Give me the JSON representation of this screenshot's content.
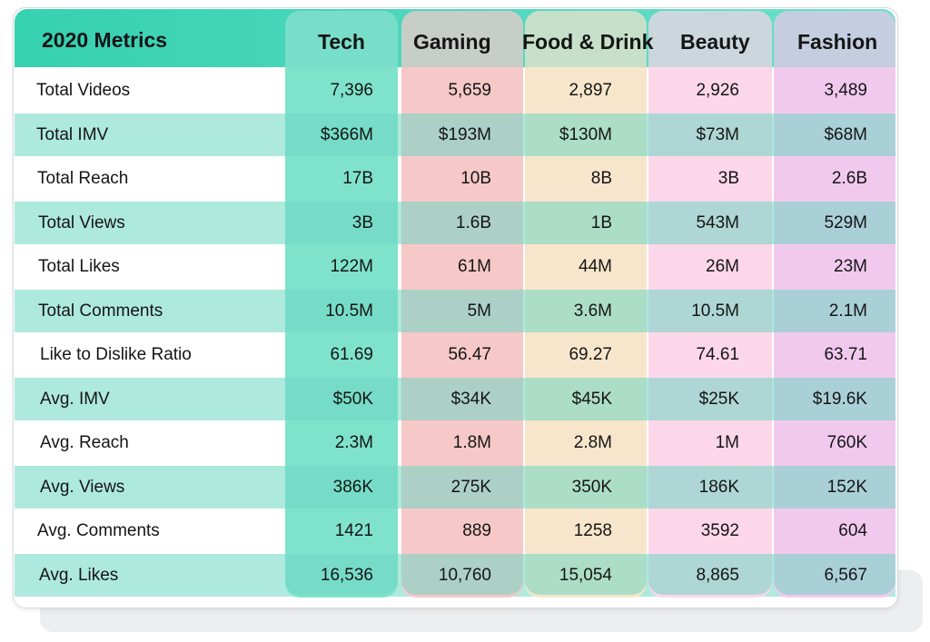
{
  "chart_data": {
    "type": "table",
    "title": "2020 Metrics",
    "columns": [
      "Tech",
      "Gaming",
      "Food & Drink",
      "Beauty",
      "Fashion"
    ],
    "rows": [
      {
        "label": "Total Videos",
        "values": [
          "7,396",
          "5,659",
          "2,897",
          "2,926",
          "3,489"
        ]
      },
      {
        "label": "Total IMV",
        "values": [
          "$366M",
          "$193M",
          "$130M",
          "$73M",
          "$68M"
        ]
      },
      {
        "label": "Total Reach",
        "values": [
          "17B",
          "10B",
          "8B",
          "3B",
          "2.6B"
        ]
      },
      {
        "label": "Total Views",
        "values": [
          "3B",
          "1.6B",
          "1B",
          "543M",
          "529M"
        ]
      },
      {
        "label": "Total Likes",
        "values": [
          "122M",
          "61M",
          "44M",
          "26M",
          "23M"
        ]
      },
      {
        "label": "Total Comments",
        "values": [
          "10.5M",
          "5M",
          "3.6M",
          "10.5M",
          "2.1M"
        ]
      },
      {
        "label": "Like to Dislike Ratio",
        "values": [
          "61.69",
          "56.47",
          "69.27",
          "74.61",
          "63.71"
        ]
      },
      {
        "label": "Avg. IMV",
        "values": [
          "$50K",
          "$34K",
          "$45K",
          "$25K",
          "$19.6K"
        ]
      },
      {
        "label": "Avg. Reach",
        "values": [
          "2.3M",
          "1.8M",
          "2.8M",
          "1M",
          "760K"
        ]
      },
      {
        "label": "Avg. Views",
        "values": [
          "386K",
          "275K",
          "350K",
          "186K",
          "152K"
        ]
      },
      {
        "label": "Avg. Comments",
        "values": [
          "1421",
          "889",
          "1258",
          "3592",
          "604"
        ]
      },
      {
        "label": "Avg. Likes",
        "values": [
          "16,536",
          "10,760",
          "15,054",
          "8,865",
          "6,567"
        ]
      }
    ],
    "column_colors": [
      "#7fe3cb",
      "#f6c8c8",
      "#f7e6cb",
      "#fcd7ea",
      "#f1c9ef"
    ],
    "header_color": "#3fd4b5",
    "band_color": "#aee9dd"
  }
}
